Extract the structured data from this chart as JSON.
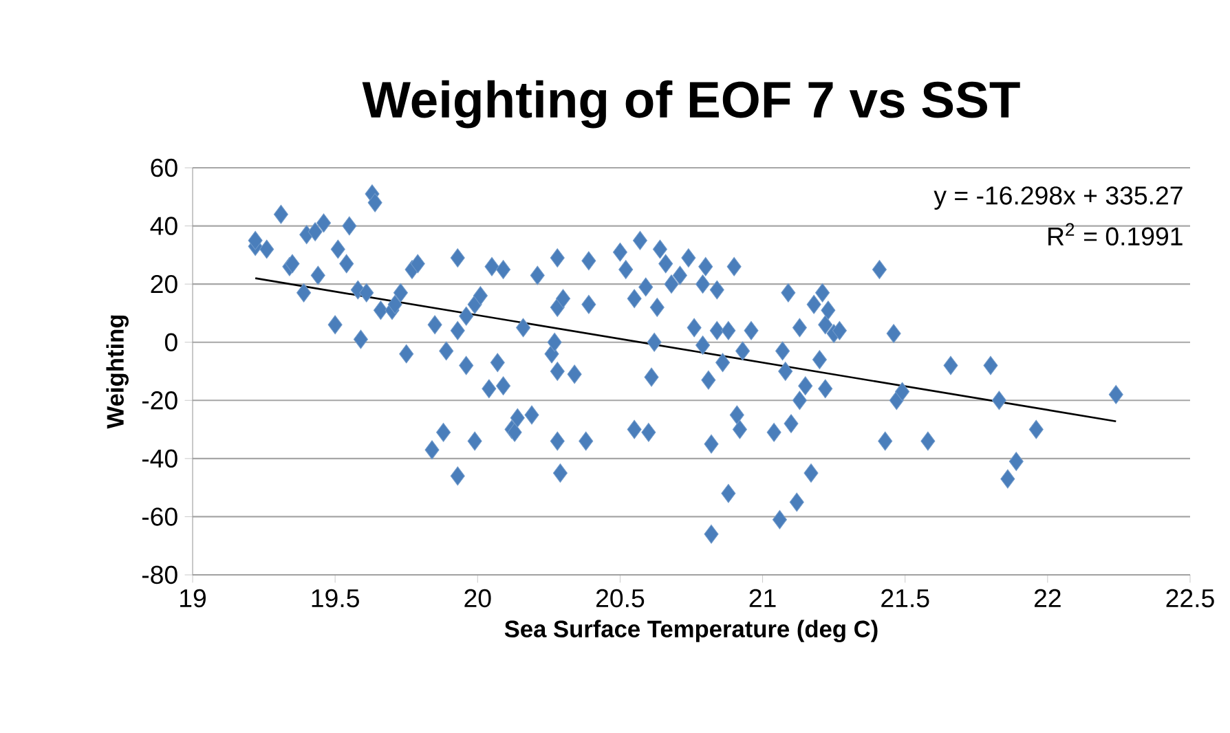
{
  "chart_data": {
    "type": "scatter",
    "title": "Weighting of EOF 7 vs SST",
    "xlabel": "Sea Surface Temperature (deg C)",
    "ylabel": "Weighting",
    "xlim": [
      19,
      22.5
    ],
    "xticks": [
      19,
      19.5,
      20,
      20.5,
      21,
      21.5,
      22,
      22.5
    ],
    "ylim": [
      -80,
      60
    ],
    "yticks": [
      -80,
      -60,
      -40,
      -20,
      0,
      20,
      40,
      60
    ],
    "grid": "y",
    "annotations": [
      "y = -16.298x + 335.27",
      "R$^{2}$ = 0.1991"
    ],
    "series": [
      {
        "marker": "diamond",
        "color": "#4a7ebb",
        "x": [
          19.22,
          19.22,
          19.26,
          19.31,
          19.34,
          19.35,
          19.39,
          19.4,
          19.43,
          19.44,
          19.46,
          19.5,
          19.51,
          19.54,
          19.55,
          19.58,
          19.59,
          19.61,
          19.63,
          19.64,
          19.66,
          19.7,
          19.71,
          19.73,
          19.75,
          19.77,
          19.79,
          19.84,
          19.85,
          19.88,
          19.89,
          19.93,
          19.93,
          19.93,
          19.96,
          19.96,
          19.99,
          19.99,
          20.01,
          20.04,
          20.05,
          20.07,
          20.09,
          20.09,
          20.12,
          20.13,
          20.14,
          20.16,
          20.19,
          20.21,
          20.26,
          20.27,
          20.28,
          20.28,
          20.28,
          20.28,
          20.29,
          20.3,
          20.34,
          20.38,
          20.39,
          20.39,
          20.5,
          20.52,
          20.55,
          20.55,
          20.57,
          20.59,
          20.6,
          20.61,
          20.62,
          20.63,
          20.64,
          20.66,
          20.68,
          20.71,
          20.74,
          20.76,
          20.79,
          20.79,
          20.8,
          20.81,
          20.82,
          20.82,
          20.84,
          20.84,
          20.86,
          20.88,
          20.88,
          20.9,
          20.91,
          20.92,
          20.93,
          20.96,
          21.04,
          21.06,
          21.07,
          21.08,
          21.09,
          21.1,
          21.12,
          21.13,
          21.13,
          21.15,
          21.17,
          21.18,
          21.2,
          21.21,
          21.22,
          21.22,
          21.23,
          21.25,
          21.27,
          21.41,
          21.43,
          21.46,
          21.47,
          21.49,
          21.58,
          21.66,
          21.8,
          21.83,
          21.86,
          21.89,
          21.96,
          22.24
        ],
        "values": [
          33,
          35,
          32,
          44,
          26,
          27,
          17,
          37,
          38,
          23,
          41,
          6,
          32,
          27,
          40,
          18,
          1,
          17,
          51,
          48,
          11,
          11,
          13,
          17,
          -4,
          25,
          27,
          -37,
          6,
          -31,
          -3,
          29,
          -46,
          4,
          -8,
          9,
          -34,
          13,
          16,
          -16,
          26,
          -7,
          -15,
          25,
          -30,
          -31,
          -26,
          5,
          -25,
          23,
          -4,
          0,
          12,
          29,
          -10,
          -34,
          -45,
          15,
          -11,
          -34,
          28,
          13,
          31,
          25,
          15,
          -30,
          35,
          19,
          -31,
          -12,
          0,
          12,
          32,
          27,
          20,
          23,
          29,
          5,
          -1,
          20,
          26,
          -13,
          -35,
          -66,
          4,
          18,
          -7,
          -52,
          4,
          26,
          -25,
          -30,
          -3,
          4,
          -31,
          -61,
          -3,
          -10,
          17,
          -28,
          -55,
          5,
          -20,
          -15,
          -45,
          13,
          -6,
          17,
          6,
          -16,
          11,
          3,
          4,
          25,
          -34,
          3,
          -20,
          -17,
          -34,
          -8,
          -8,
          -20,
          -47,
          -41,
          -30,
          -18
        ]
      },
      {
        "type": "line",
        "marker": "none",
        "color": "#000000",
        "x": [
          19.22,
          22.24
        ],
        "values": [
          22.0,
          -27.2
        ]
      }
    ]
  }
}
